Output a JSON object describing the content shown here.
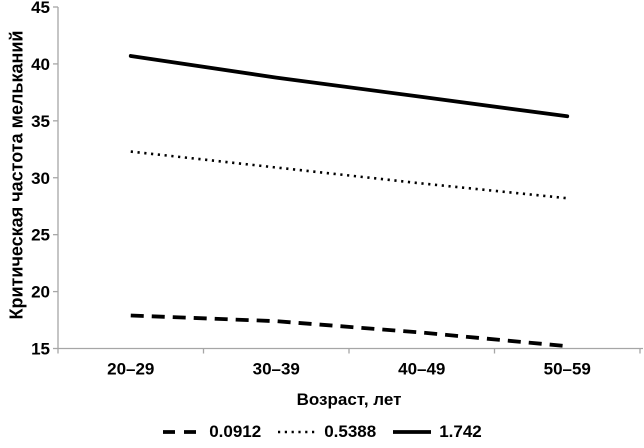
{
  "chart_data": {
    "type": "line",
    "title": "",
    "xlabel": "Возраст, лет",
    "ylabel": "Критическая частота мельканий",
    "categories": [
      "20–29",
      "30–39",
      "40–49",
      "50–59"
    ],
    "series": [
      {
        "name": "0.0912",
        "style": "dashed",
        "values": [
          17.9,
          17.4,
          16.4,
          15.2
        ]
      },
      {
        "name": "0.5388",
        "style": "dotted",
        "values": [
          32.3,
          30.9,
          29.5,
          28.2
        ]
      },
      {
        "name": "1.742",
        "style": "solid",
        "values": [
          40.7,
          38.8,
          37.1,
          35.4
        ]
      }
    ],
    "ylim": [
      15,
      45
    ],
    "yticks": [
      45,
      40,
      35,
      30,
      25,
      20,
      15
    ],
    "grid": false,
    "legend_position": "bottom",
    "colors": {
      "line": "#000000",
      "axis": "#a6a6a6",
      "text": "#000000",
      "background": "#ffffff"
    }
  }
}
